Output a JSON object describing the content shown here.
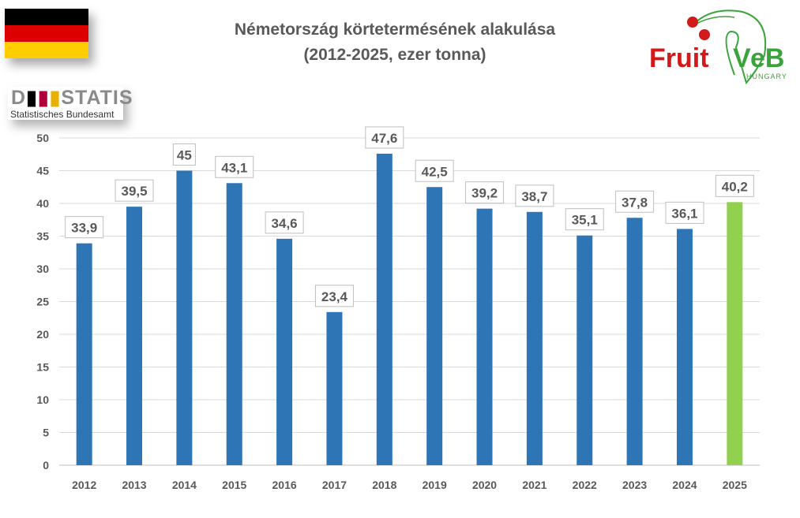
{
  "logos": {
    "left_top": "German flag",
    "destatis_main": "DESTATIS",
    "destatis_sub": "Statistisches Bundesamt",
    "right": "FruitVeB HUNGARY"
  },
  "colors": {
    "bar": "#2e75b6",
    "highlight": "#92d050",
    "grid": "#d9d9d9",
    "text": "#595959"
  },
  "chart_data": {
    "type": "bar",
    "title": "Németország körtetermésének alakulása",
    "subtitle": "(2012-2025, ezer tonna)",
    "xlabel": "",
    "ylabel": "",
    "categories": [
      "2012",
      "2013",
      "2014",
      "2015",
      "2016",
      "2017",
      "2018",
      "2019",
      "2020",
      "2021",
      "2022",
      "2023",
      "2024",
      "2025"
    ],
    "values": [
      33.9,
      39.5,
      45,
      43.1,
      34.6,
      23.4,
      47.6,
      42.5,
      39.2,
      38.7,
      35.1,
      37.8,
      36.1,
      40.2
    ],
    "labels": [
      "33,9",
      "39,5",
      "45",
      "43,1",
      "34,6",
      "23,4",
      "47,6",
      "42,5",
      "39,2",
      "38,7",
      "35,1",
      "37,8",
      "36,1",
      "40,2"
    ],
    "highlight_index": 13,
    "ylim": [
      0,
      50
    ],
    "yticks": [
      0,
      5,
      10,
      15,
      20,
      25,
      30,
      35,
      40,
      45,
      50
    ],
    "grid": true,
    "legend": "none"
  }
}
